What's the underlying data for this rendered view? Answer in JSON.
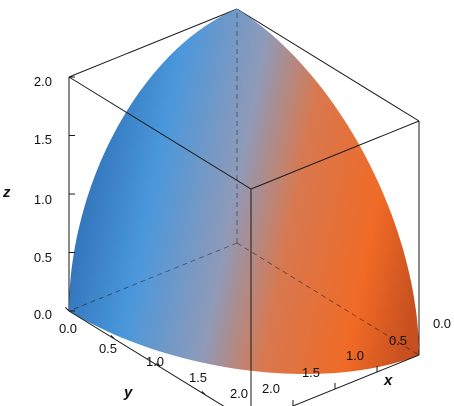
{
  "chart_data": {
    "type": "surface3d",
    "surface": "octant of sphere, x^2 + y^2 + z^2 = 4, x >= 0, y >= 0, z >= 0",
    "radius": 2.0,
    "xlabel": "x",
    "ylabel": "y",
    "zlabel": "z",
    "xlim": [
      0,
      2
    ],
    "ylim": [
      0,
      2
    ],
    "zlim": [
      0,
      2
    ],
    "xticks": [
      "0.0",
      "0.5",
      "1.0",
      "1.5",
      "2.0"
    ],
    "yticks": [
      "0.0",
      "0.5",
      "1.0",
      "1.5",
      "2.0"
    ],
    "zticks": [
      "0.0",
      "0.5",
      "1.0",
      "1.5",
      "2.0"
    ],
    "colors": {
      "y_side": "#3d8fd6",
      "x_side": "#ee6420",
      "edge": "#1a1a1a"
    },
    "box": true,
    "hidden_edges_dashed": true
  }
}
